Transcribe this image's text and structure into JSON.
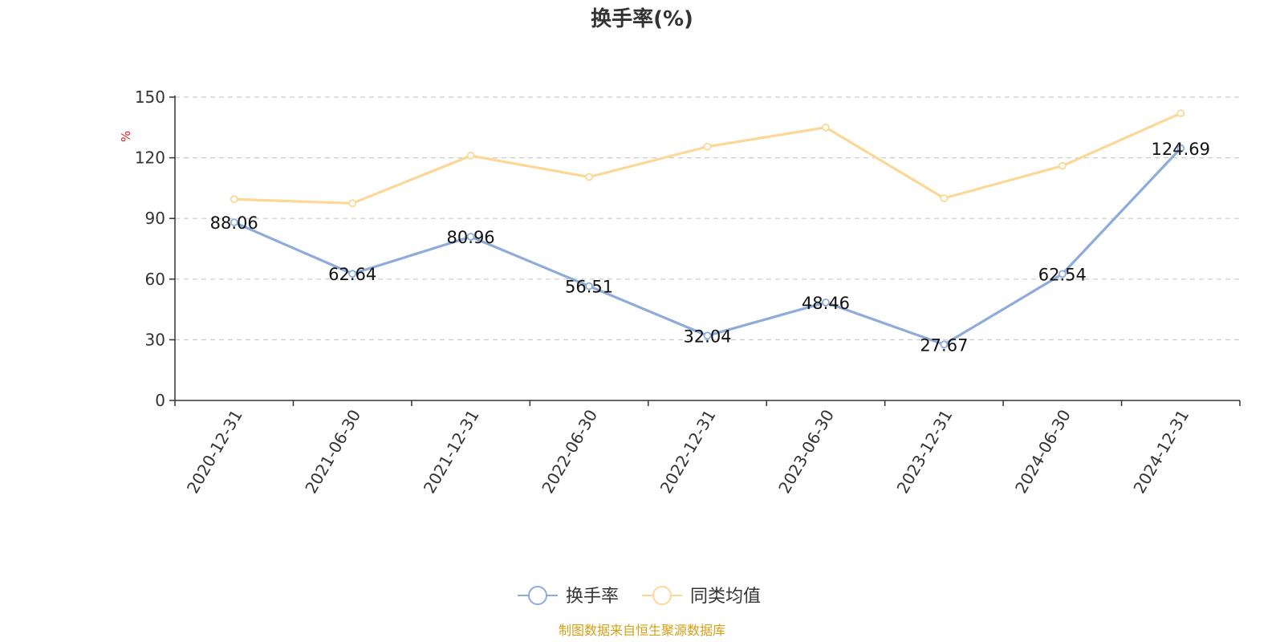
{
  "chart_data": {
    "type": "line",
    "title": "换手率(%)",
    "ylabel": "%",
    "ylim": [
      0,
      150
    ],
    "yticks": [
      0,
      30,
      60,
      90,
      120,
      150
    ],
    "categories": [
      "2020-12-31",
      "2021-06-30",
      "2021-12-31",
      "2022-06-30",
      "2022-12-31",
      "2023-06-30",
      "2023-12-31",
      "2024-06-30",
      "2024-12-31"
    ],
    "series": [
      {
        "name": "换手率",
        "color": "#8eacdb",
        "show_labels": true,
        "values": [
          88.06,
          62.64,
          80.96,
          56.51,
          32.04,
          48.46,
          27.67,
          62.54,
          124.69
        ],
        "labels": [
          "88.06",
          "62.64",
          "80.96",
          "56.51",
          "32.04",
          "48.46",
          "27.67",
          "62.54",
          "124.69"
        ]
      },
      {
        "name": "同类均值",
        "color": "#fbd896",
        "show_labels": false,
        "values": [
          99.5,
          97.5,
          121,
          110.5,
          125.5,
          135,
          100,
          116,
          142
        ]
      }
    ],
    "grid": true,
    "legend_position": "bottom-center"
  },
  "source_text": "制图数据来自恒生聚源数据库",
  "colors": {
    "axis": "#333333",
    "grid": "#cccccc",
    "unit_label": "#e02020",
    "source_text": "#d4a017"
  }
}
